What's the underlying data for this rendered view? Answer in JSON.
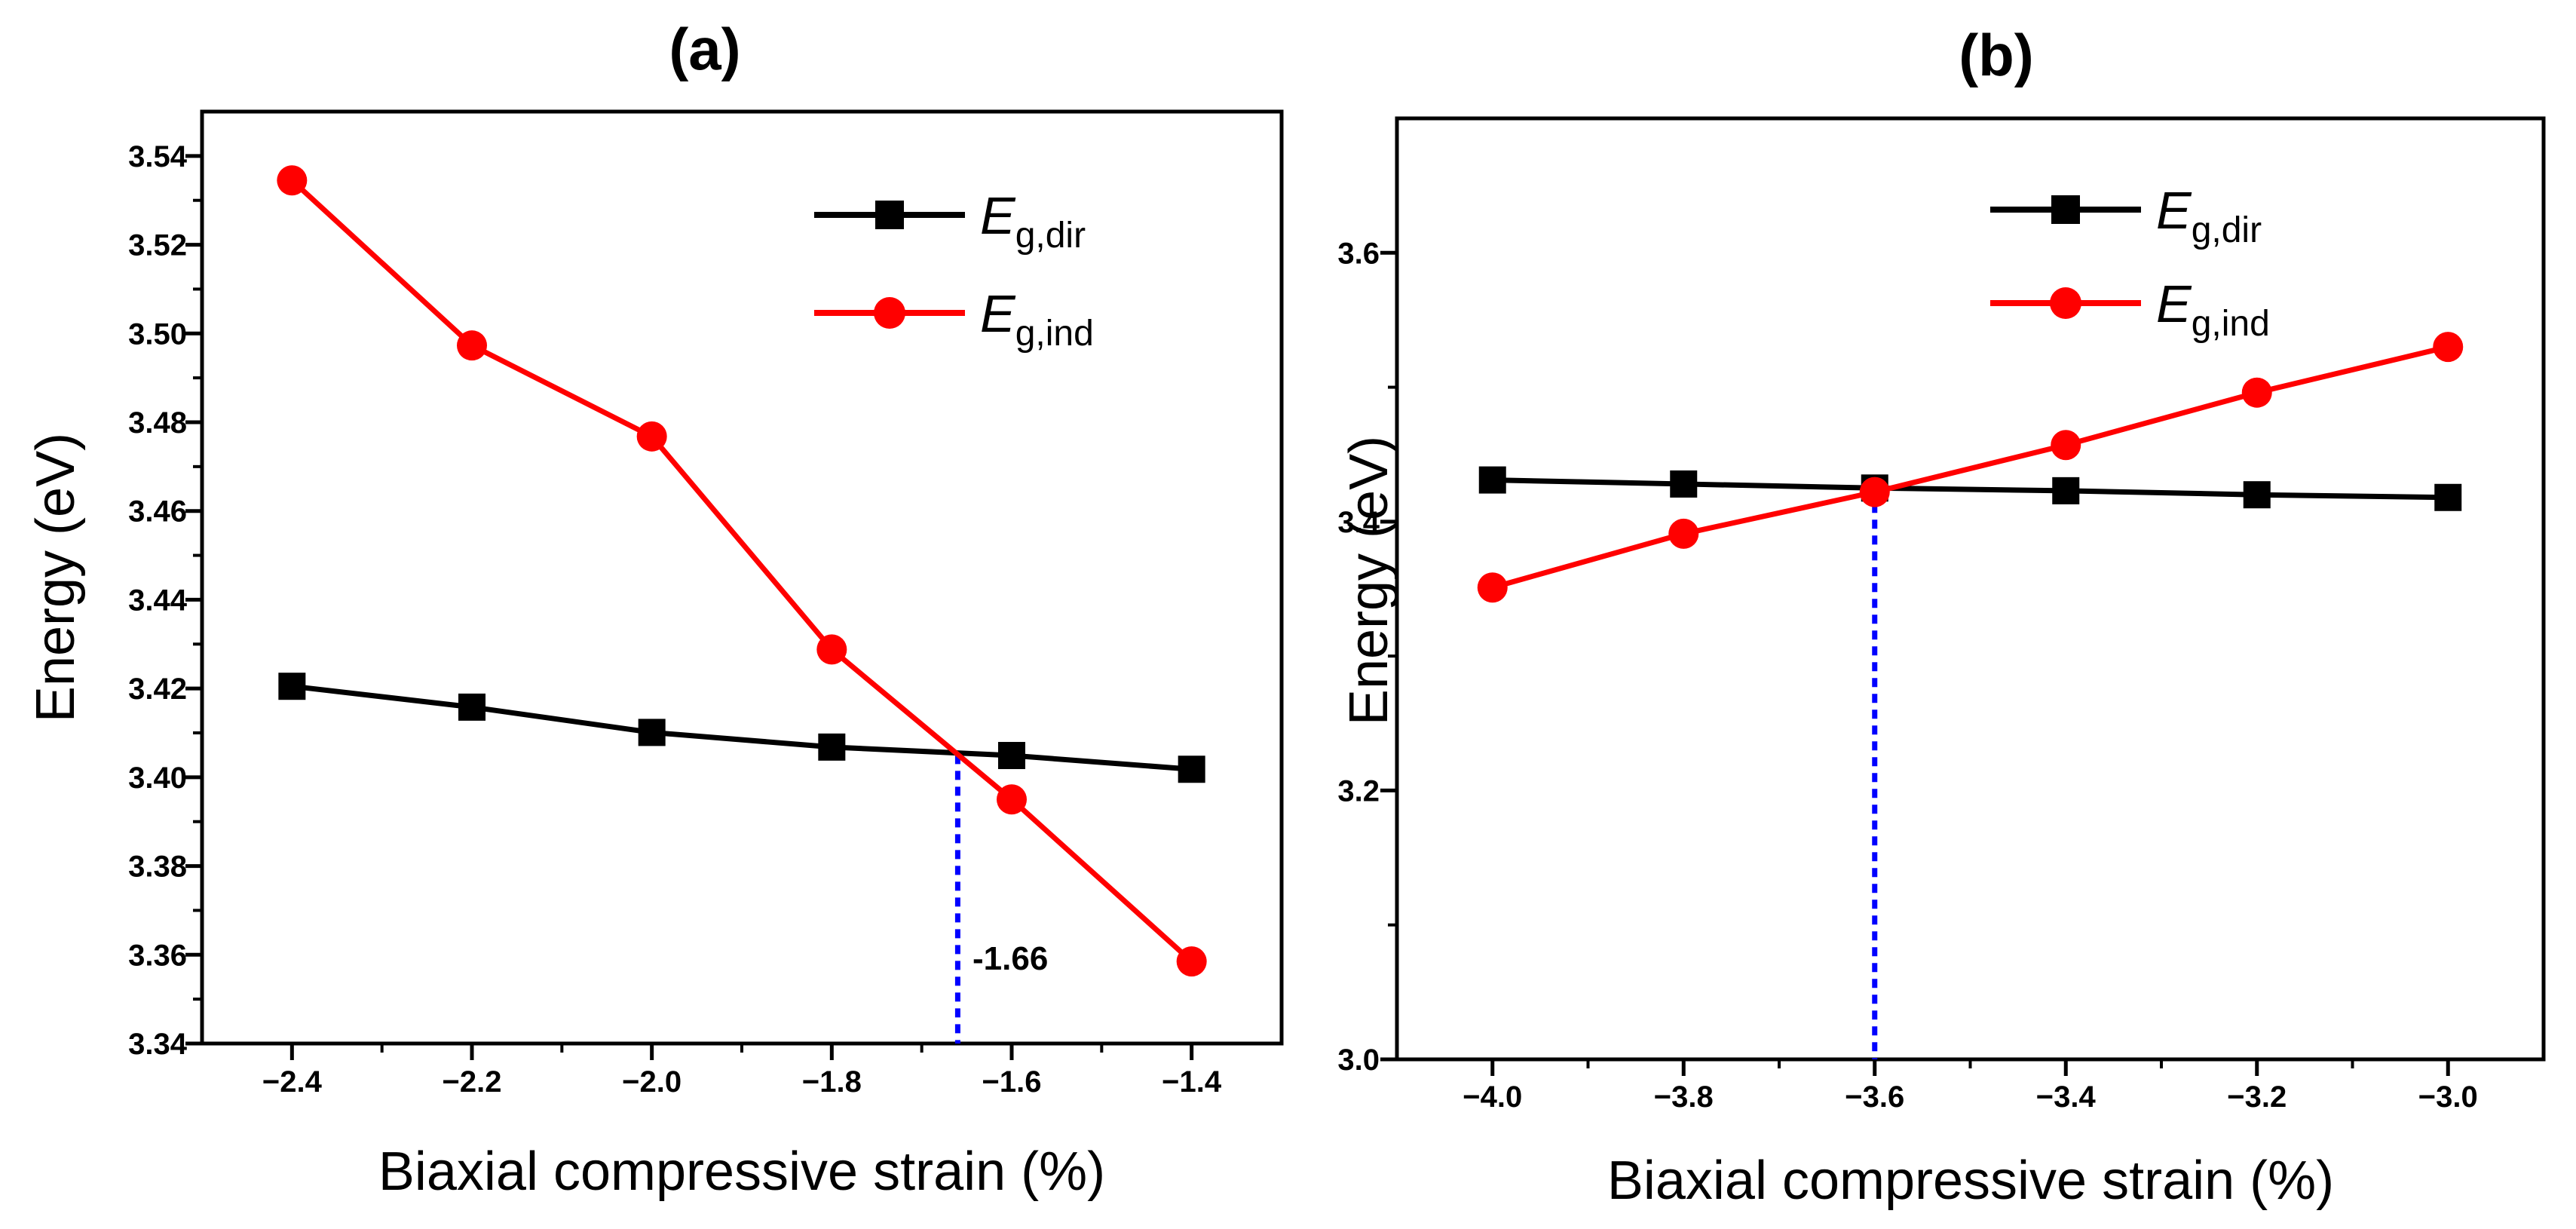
{
  "chart_data": [
    {
      "type": "line",
      "title": "(a)",
      "xlabel": "Biaxial compressive strain (%)",
      "ylabel": "Energy (eV)",
      "xlim": [
        -2.5,
        -1.3
      ],
      "ylim": [
        3.34,
        3.55
      ],
      "xticks": [
        -2.4,
        -2.2,
        -2.0,
        -1.8,
        -1.6,
        -1.4
      ],
      "xtick_labels": [
        "−2.4",
        "−2.2",
        "−2.0",
        "−1.8",
        "−1.6",
        "−1.4"
      ],
      "yticks": [
        3.34,
        3.36,
        3.38,
        3.4,
        3.42,
        3.44,
        3.46,
        3.48,
        3.5,
        3.52,
        3.54
      ],
      "ytick_labels": [
        "3.34",
        "3.36",
        "3.38",
        "3.40",
        "3.42",
        "3.44",
        "3.46",
        "3.48",
        "3.50",
        "3.52",
        "3.54"
      ],
      "x": [
        -2.4,
        -2.2,
        -2.0,
        -1.8,
        -1.6,
        -1.4
      ],
      "series": [
        {
          "name": "E",
          "subscript": "g,dir",
          "color": "#000000",
          "marker": "square",
          "values": [
            3.4205,
            3.4158,
            3.4101,
            3.4068,
            3.4049,
            3.4018
          ]
        },
        {
          "name": "E",
          "subscript": "g,ind",
          "color": "#ff0000",
          "marker": "circle",
          "values": [
            3.5345,
            3.4973,
            3.4768,
            3.4288,
            3.395,
            3.3585
          ]
        }
      ],
      "crossover": {
        "x": -1.66,
        "y": 3.405,
        "label": "-1.66",
        "color": "#0000ff"
      },
      "legend_position": "top-right"
    },
    {
      "type": "line",
      "title": "(b)",
      "xlabel": "Biaxial compressive strain (%)",
      "ylabel": "Energy (eV)",
      "xlim": [
        -4.1,
        -2.9
      ],
      "ylim": [
        3.0,
        3.7
      ],
      "xticks": [
        -4.0,
        -3.8,
        -3.6,
        -3.4,
        -3.2,
        -3.0
      ],
      "xtick_labels": [
        "−4.0",
        "−3.8",
        "−3.6",
        "−3.4",
        "−3.2",
        "−3.0"
      ],
      "yticks": [
        3.0,
        3.2,
        3.4,
        3.6
      ],
      "ytick_labels": [
        "3.0",
        "3.2",
        "3.4",
        "3.6"
      ],
      "x": [
        -4.0,
        -3.8,
        -3.6,
        -3.4,
        -3.2,
        -3.0
      ],
      "series": [
        {
          "name": "E",
          "subscript": "g,dir",
          "color": "#000000",
          "marker": "square",
          "values": [
            3.431,
            3.428,
            3.425,
            3.423,
            3.42,
            3.418
          ]
        },
        {
          "name": "E",
          "subscript": "g,ind",
          "color": "#ff0000",
          "marker": "circle",
          "values": [
            3.351,
            3.391,
            3.422,
            3.457,
            3.496,
            3.53
          ]
        }
      ],
      "crossover": {
        "x": -3.6,
        "y": 3.425,
        "color": "#0000ff"
      },
      "legend_position": "top-right"
    }
  ]
}
